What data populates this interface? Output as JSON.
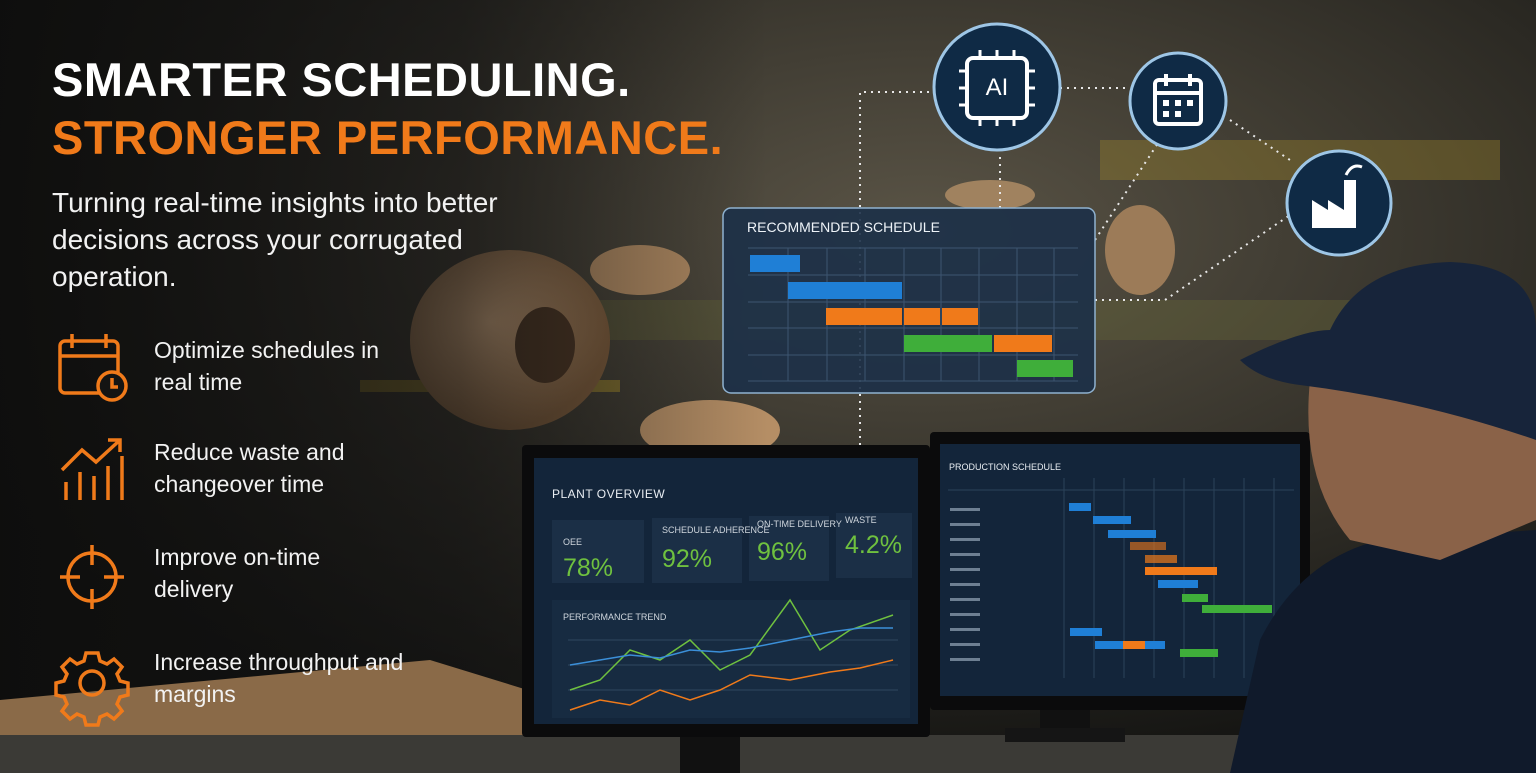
{
  "headline": {
    "line1": "SMARTER SCHEDULING.",
    "line2": "STRONGER PERFORMANCE."
  },
  "subtitle": "Turning real-time insights into better decisions across your corrugated operation.",
  "benefits": [
    "Optimize schedules in real time",
    "Reduce waste and changeover time",
    "Improve on-time delivery",
    "Increase throughput and margins"
  ],
  "recommended_schedule": {
    "title": "RECOMMENDED SCHEDULE"
  },
  "ai_badge": "AI",
  "plant_overview": {
    "title": "PLANT OVERVIEW",
    "metrics": [
      {
        "label": "OEE",
        "value": "78%"
      },
      {
        "label": "SCHEDULE ADHERENCE",
        "value": "92%"
      },
      {
        "label": "ON-TIME DELIVERY",
        "value": "96%"
      },
      {
        "label": "WASTE",
        "value": "4.2%"
      }
    ],
    "trend_title": "PERFORMANCE TREND"
  },
  "production_schedule": {
    "title": "PRODUCTION SCHEDULE"
  }
}
